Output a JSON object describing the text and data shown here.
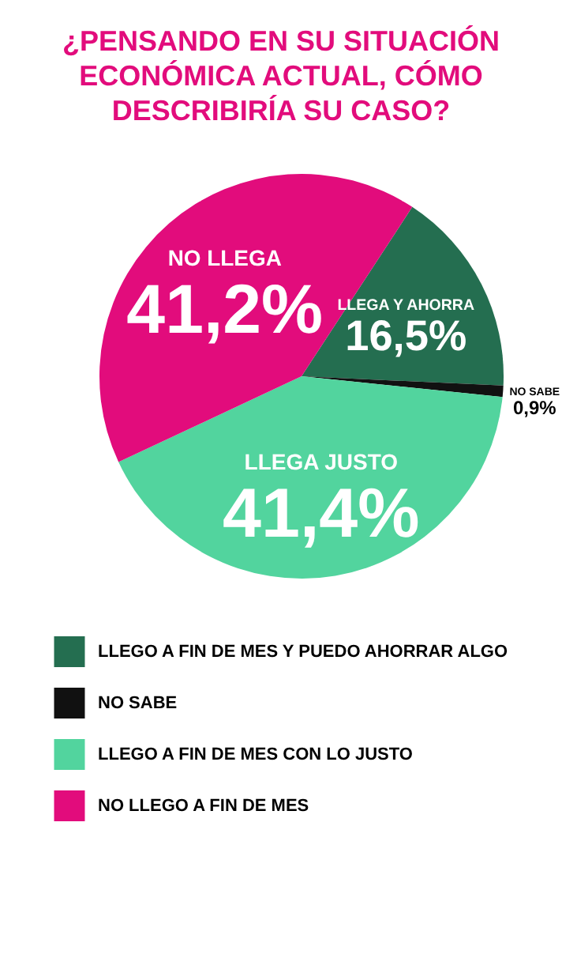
{
  "chart_data": {
    "type": "pie",
    "title": "¿PENSANDO EN SU SITUACIÓN ECONÓMICA ACTUAL, CÓMO DESCRIBIRÍA SU CASO?",
    "categories": [
      "LLEGO A FIN DE MES Y PUEDO AHORRAR ALGO",
      "NO SABE",
      "LLEGO A FIN DE MES CON LO JUSTO",
      "NO LLEGO A FIN DE MES"
    ],
    "values": [
      16.5,
      0.9,
      41.4,
      41.2
    ],
    "colors": [
      "#246e50",
      "#111111",
      "#52d49e",
      "#e20c7c"
    ],
    "value_labels": [
      "16,5%",
      "0,9%",
      "41,4%",
      "41,2%"
    ],
    "annotations": [
      {
        "text": "LLEGA Y AHORRA",
        "x": "LLEGO A FIN DE MES Y PUEDO AHORRAR ALGO"
      },
      {
        "text": "NO SABE",
        "x": "NO SABE"
      },
      {
        "text": "LLEGA JUSTO",
        "x": "LLEGO A FIN DE MES CON LO JUSTO"
      },
      {
        "text": "NO LLEGA",
        "x": "NO LLEGO A FIN DE MES"
      }
    ],
    "legend": "bottom"
  }
}
